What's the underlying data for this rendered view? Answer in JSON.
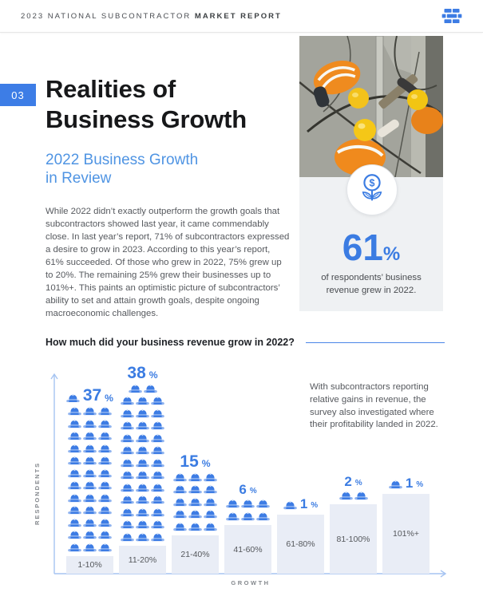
{
  "header": {
    "title_regular": "2023 NATIONAL SUBCONTRACTOR",
    "title_bold": "MARKET REPORT"
  },
  "section": {
    "number": "03",
    "title_line1": "Realities of",
    "title_line2": "Business Growth",
    "subtitle_line1": "2022 Business Growth",
    "subtitle_line2": "in Review",
    "body": "While 2022 didn’t exactly outperform the growth goals that subcontractors showed last year, it came commendably close. In last year’s report, 71% of subcontractors expressed a desire to grow in 2023. According to this year’s report, 61% succeeded. Of those who grew in 2022, 75% grew up to 20%. The remaining 25% grew their businesses up to 101%+. This paints an optimistic picture of subcontractors’ ability to set and attain growth goals, despite ongoing macroeconomic challenges."
  },
  "stat": {
    "value": "61",
    "unit": "%",
    "caption": "of respondents’ business revenue grew in 2022.",
    "icon": "money-growth-icon"
  },
  "aside": {
    "text": "With subcontractors reporting relative gains in revenue, the survey also investigated where their profitability landed in 2022."
  },
  "chart_data": {
    "type": "pictogram-bar",
    "title": "How much did your business revenue grow in 2022?",
    "categories": [
      "1-10%",
      "11-20%",
      "21-40%",
      "41-60%",
      "61-80%",
      "81-100%",
      "101%+"
    ],
    "values": [
      37,
      38,
      15,
      6,
      1,
      2,
      1
    ],
    "value_labels": [
      "37%",
      "38%",
      "15%",
      "6%",
      "1%",
      "2%",
      "1%"
    ],
    "icon": "hard-hat-icon",
    "icons_per_row": 3,
    "xlabel": "GROWTH",
    "ylabel": "RESPONDENTS",
    "legend": "none",
    "grid": "off"
  },
  "colors": {
    "accent_blue": "#3b7ce2",
    "subhead_blue": "#4f94e3",
    "axis_blue": "#a6c4f2",
    "pedestal": "#e9edf6",
    "card_gray": "#eff1f3",
    "text_dark": "#17181a",
    "text_gray": "#56595e"
  }
}
